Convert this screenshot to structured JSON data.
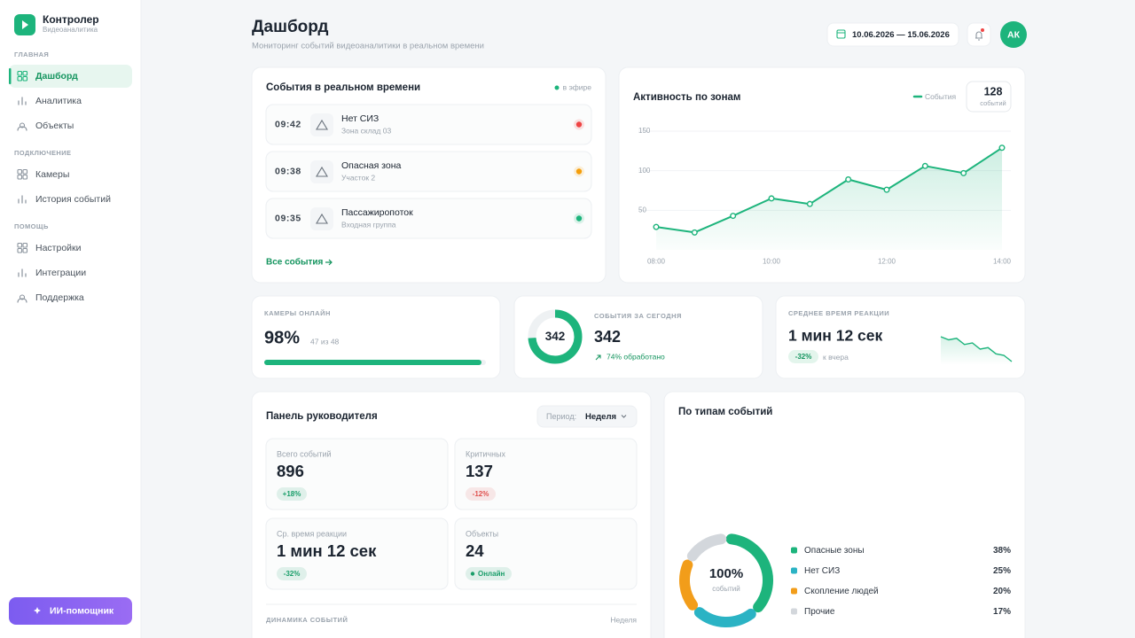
{
  "sidebar": {
    "brand": "Контролер",
    "brand_sub": "Видеоаналитика",
    "active": "Дашборд",
    "sections": [
      {
        "title": "ГЛАВНАЯ",
        "items": [
          "Дашборд",
          "Аналитика",
          "Объекты"
        ]
      },
      {
        "title": "ПОДКЛЮЧЕНИЕ",
        "items": [
          "Камеры",
          "История событий"
        ]
      },
      {
        "title": "ПОМОЩЬ",
        "items": [
          "Настройки",
          "Интеграции",
          "Поддержка"
        ]
      }
    ],
    "assistant": "ИИ-помощник"
  },
  "header": {
    "title": "Дашборд",
    "subtitle": "Мониторинг событий видеоаналитики в реальном времени",
    "date_range": "10.06.2026 — 15.06.2026",
    "avatar": "АК"
  },
  "realtime": {
    "title": "События в реальном времени",
    "live": "в эфире",
    "events": [
      {
        "time": "09:42",
        "title": "Нет СИЗ",
        "place": "Зона склад 03",
        "color": "#ef4444"
      },
      {
        "time": "09:38",
        "title": "Опасная зона",
        "place": "Участок 2",
        "color": "#f59e0b"
      },
      {
        "time": "09:35",
        "title": "Пассажиропоток",
        "place": "Входная группа",
        "color": "#1db47c"
      }
    ],
    "link": "Все события"
  },
  "chart_data": [
    {
      "type": "line",
      "title": "Активность по зонам",
      "categories": [
        "08:00",
        null,
        null,
        "10:00",
        null,
        null,
        "12:00",
        null,
        null,
        "14:00"
      ],
      "series": [
        {
          "name": "События",
          "color": "#1db47c",
          "values": [
            29,
            22,
            43,
            65,
            58,
            89,
            76,
            106,
            97,
            129
          ]
        }
      ],
      "ylim": [
        0,
        150
      ],
      "yticks": [
        50,
        100,
        150
      ],
      "grid": true,
      "total": 128,
      "total_label": "событий"
    },
    {
      "type": "pie",
      "title": "По типам событий",
      "categories": [
        "Опасные зоны",
        "Нет СИЗ",
        "Скопление людей",
        "Прочие"
      ],
      "values": [
        38,
        25,
        20,
        17
      ],
      "value_labels": [
        "38%",
        "25%",
        "20%",
        "17%"
      ],
      "colors": [
        "#1db47c",
        "#2bb3c4",
        "#f29d1a",
        "#d3d7dc"
      ],
      "center_label": "100%",
      "center_sub": "событий"
    }
  ],
  "stats": {
    "cameras": {
      "label": "КАМЕРЫ ОНЛАЙН",
      "value": 98,
      "value_label": "98%",
      "sub": "47 из 48"
    },
    "today": {
      "label": "СОБЫТИЯ ЗА СЕГОДНЯ",
      "value": 342,
      "processed": 74,
      "processed_label": "74% обработано"
    },
    "reaction": {
      "label": "СРЕДНЕЕ ВРЕМЯ РЕАКЦИИ",
      "value": "1 мин 12 сек",
      "badge": "-32%",
      "badge_sub": "к вчера",
      "sparkline": [
        20,
        18,
        19,
        15,
        16,
        12,
        13,
        9,
        8,
        4
      ]
    }
  },
  "manager": {
    "title": "Панель руководителя",
    "period_label": "Период:",
    "period": "Неделя",
    "kpis": [
      {
        "label": "Всего событий",
        "value": 896,
        "badge": "+18%",
        "badge_color": "#1a9e6a"
      },
      {
        "label": "Критичных",
        "value": 137,
        "badge": "-12%",
        "badge_color": "#e0524f"
      },
      {
        "label": "Ср. время реакции",
        "value": "1 мин 12 сек",
        "badge": "-32%",
        "badge_color": "#1a9e6a"
      },
      {
        "label": "Объекты",
        "value": 24,
        "badge": "Онлайн",
        "badge_color": "#1a9e6a"
      }
    ],
    "dynamics_title": "ДИНАМИКА СОБЫТИЙ",
    "dynamics_period": "Неделя"
  }
}
